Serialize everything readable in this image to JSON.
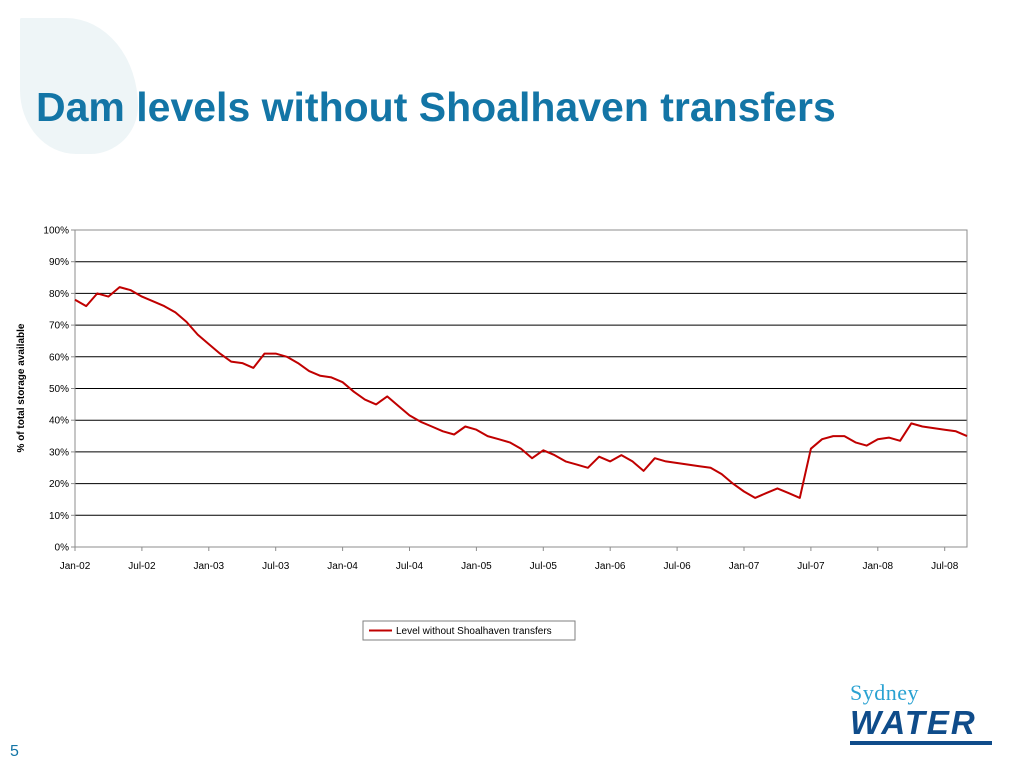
{
  "slide": {
    "title": "Dam levels without Shoalhaven transfers",
    "page_number": "5"
  },
  "logo": {
    "line1": "Sydney",
    "line2": "WATER"
  },
  "colors": {
    "title": "#1375a6",
    "series": "#c00000",
    "logo_light": "#2aa2d2",
    "logo_dark": "#0f4c8a"
  },
  "chart_data": {
    "type": "line",
    "title": "",
    "xlabel": "",
    "ylabel": "% of total storage available",
    "ylim": [
      0,
      100
    ],
    "yticks": [
      "0%",
      "10%",
      "20%",
      "30%",
      "40%",
      "50%",
      "60%",
      "70%",
      "80%",
      "90%",
      "100%"
    ],
    "xlim": [
      "2002-01",
      "2008-09"
    ],
    "xticks": [
      "Jan-02",
      "Jul-02",
      "Jan-03",
      "Jul-03",
      "Jan-04",
      "Jul-04",
      "Jan-05",
      "Jul-05",
      "Jan-06",
      "Jul-06",
      "Jan-07",
      "Jul-07",
      "Jan-08",
      "Jul-08"
    ],
    "grid": "horizontal",
    "legend": "bottom-center",
    "series": [
      {
        "name": "Level without Shoalhaven transfers",
        "x": [
          "2002-01",
          "2002-02",
          "2002-03",
          "2002-04",
          "2002-05",
          "2002-06",
          "2002-07",
          "2002-08",
          "2002-09",
          "2002-10",
          "2002-11",
          "2002-12",
          "2003-01",
          "2003-02",
          "2003-03",
          "2003-04",
          "2003-05",
          "2003-06",
          "2003-07",
          "2003-08",
          "2003-09",
          "2003-10",
          "2003-11",
          "2003-12",
          "2004-01",
          "2004-02",
          "2004-03",
          "2004-04",
          "2004-05",
          "2004-06",
          "2004-07",
          "2004-08",
          "2004-09",
          "2004-10",
          "2004-11",
          "2004-12",
          "2005-01",
          "2005-02",
          "2005-03",
          "2005-04",
          "2005-05",
          "2005-06",
          "2005-07",
          "2005-08",
          "2005-09",
          "2005-10",
          "2005-11",
          "2005-12",
          "2006-01",
          "2006-02",
          "2006-03",
          "2006-04",
          "2006-05",
          "2006-06",
          "2006-07",
          "2006-08",
          "2006-09",
          "2006-10",
          "2006-11",
          "2006-12",
          "2007-01",
          "2007-02",
          "2007-03",
          "2007-04",
          "2007-05",
          "2007-06",
          "2007-07",
          "2007-08",
          "2007-09",
          "2007-10",
          "2007-11",
          "2007-12",
          "2008-01",
          "2008-02",
          "2008-03",
          "2008-04",
          "2008-05",
          "2008-06",
          "2008-07",
          "2008-08",
          "2008-09"
        ],
        "values": [
          78,
          76,
          80,
          79,
          82,
          81,
          79,
          77.5,
          76,
          74,
          71,
          67,
          64,
          61,
          58.5,
          58,
          56.5,
          61,
          61,
          60,
          58,
          55.5,
          54,
          53.5,
          52,
          49,
          46.5,
          45,
          47.5,
          44.5,
          41.5,
          39.5,
          38,
          36.5,
          35.5,
          38,
          37,
          35,
          34,
          33,
          31,
          28,
          30.5,
          29,
          27,
          26,
          25,
          28.5,
          27,
          29,
          27,
          24,
          28,
          27,
          26.5,
          26,
          25.5,
          25,
          23,
          20,
          17.5,
          15.5,
          17,
          18.5,
          17,
          15.5,
          31,
          34,
          35,
          35,
          33,
          32,
          34,
          34.5,
          33.5,
          39,
          38,
          37.5,
          37,
          36.5,
          35
        ]
      }
    ]
  }
}
